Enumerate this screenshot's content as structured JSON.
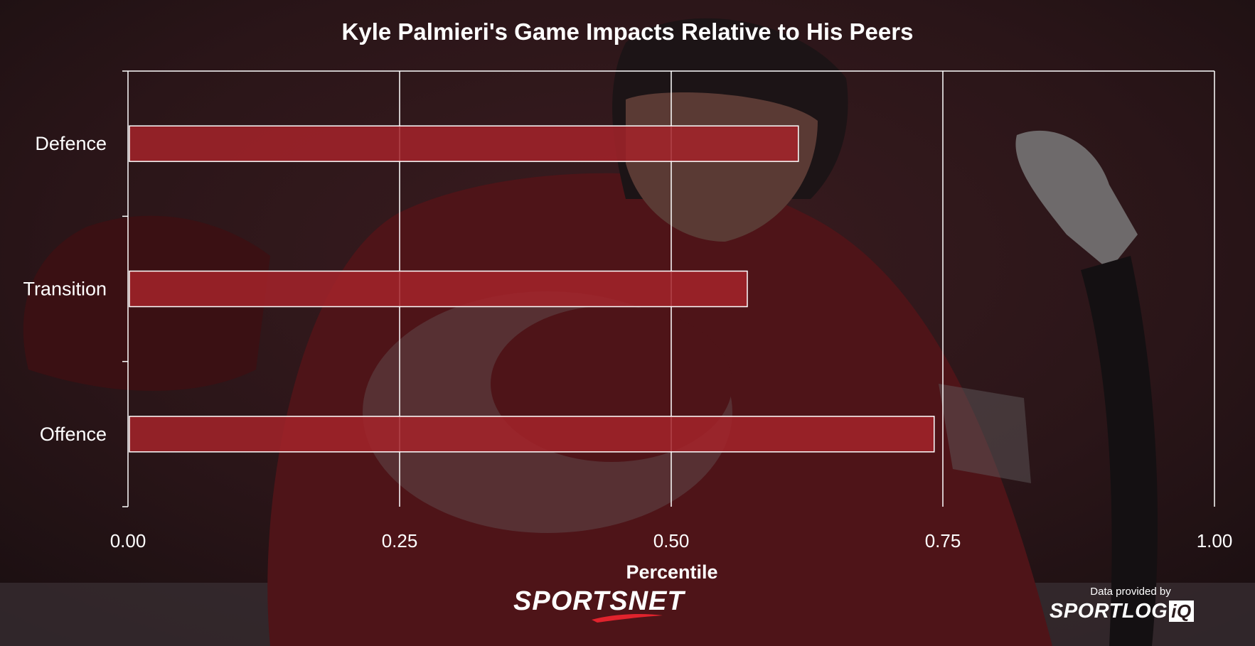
{
  "title": "Kyle Palmieri's Game Impacts Relative to His Peers",
  "footer": {
    "sportsnet_logo": "SPORTSNET",
    "credit": "Data provided by",
    "sportlogiq_text": "SPORTLOG",
    "sportlogiq_box": "iQ"
  },
  "colors": {
    "bar_fill": "#a4232a",
    "bar_stroke": "#ffffff",
    "grid": "#ffffff",
    "text": "#ffffff"
  },
  "chart_data": {
    "type": "bar",
    "orientation": "horizontal",
    "categories": [
      "Defence",
      "Transition",
      "Offence"
    ],
    "values": [
      0.617,
      0.57,
      0.742
    ],
    "xlabel": "Percentile",
    "ylabel": "",
    "xlim": [
      0,
      1
    ],
    "xticks": [
      "0.00",
      "0.25",
      "0.50",
      "0.75",
      "1.00"
    ],
    "grid": true,
    "legend": "none"
  }
}
